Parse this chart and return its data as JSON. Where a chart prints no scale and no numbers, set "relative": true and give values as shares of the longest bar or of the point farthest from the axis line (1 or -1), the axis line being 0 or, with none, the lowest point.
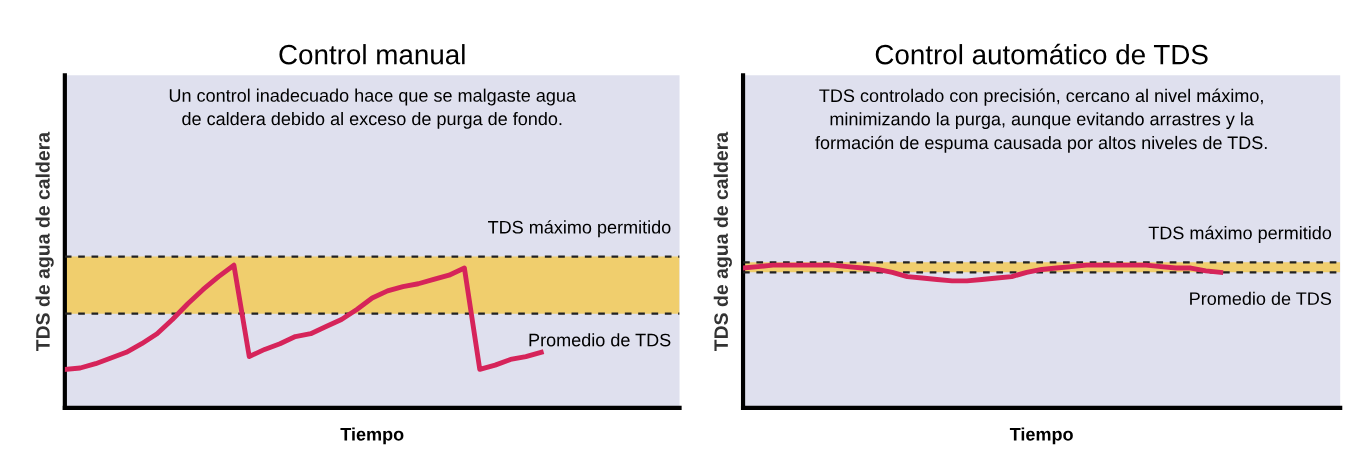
{
  "chart_data": [
    {
      "type": "line",
      "title": "Control manual",
      "xlabel": "Tiempo",
      "ylabel": "TDS de agua de caldera",
      "relative": true,
      "tick_labels": false,
      "marker": "none",
      "line_style": "solid",
      "annotations": [
        "Un control inadecuado hace que se malgaste agua\nde caldera debido al exceso de purga de fondo."
      ],
      "categories": [
        null,
        null,
        null,
        null,
        null,
        null,
        null,
        null,
        null,
        null,
        null,
        null,
        null,
        null,
        null,
        null,
        null,
        null,
        null,
        null,
        null,
        null,
        null,
        null,
        null,
        null,
        null,
        null,
        null,
        null,
        null,
        null,
        null,
        null,
        null,
        null,
        null,
        null,
        null,
        null,
        null
      ],
      "series": [
        {
          "color": "#d6245a",
          "values": [
            0.27,
            0.28,
            0.31,
            0.35,
            0.39,
            0.45,
            0.52,
            0.62,
            0.73,
            0.83,
            0.92,
            1.0,
            0.36,
            0.41,
            0.45,
            0.5,
            0.52,
            0.57,
            0.62,
            0.69,
            0.77,
            0.82,
            0.85,
            0.87,
            0.9,
            0.93,
            0.98,
            0.27,
            0.3,
            0.34,
            0.36,
            0.39,
            null,
            null,
            null,
            null,
            null,
            null,
            null,
            null,
            null
          ]
        }
      ],
      "ref_lines": [
        {
          "axis": "y",
          "value": 1.06,
          "label": "TDS máximo permitido",
          "color": "#222222",
          "line_style": "dashed"
        },
        {
          "axis": "y",
          "value": 0.66,
          "label": "Promedio de TDS",
          "color": "#222222",
          "line_style": "dashed"
        }
      ],
      "bands": [
        {
          "axis": "y",
          "from": 0.66,
          "to": 1.06,
          "color": "#f5c842"
        }
      ]
    },
    {
      "type": "line",
      "title": "Control automático de TDS",
      "xlabel": "Tiempo",
      "ylabel": "TDS de agua de caldera",
      "relative": true,
      "tick_labels": false,
      "marker": "none",
      "line_style": "solid",
      "annotations": [
        "TDS controlado con precisión, cercano al nivel máximo,\nminimizando la purga, aunque evitando arrastres y la\nformación de espuma causada por altos niveles de TDS."
      ],
      "categories": [
        null,
        null,
        null,
        null,
        null,
        null,
        null,
        null,
        null,
        null,
        null,
        null,
        null,
        null,
        null,
        null,
        null,
        null,
        null,
        null,
        null,
        null,
        null,
        null,
        null,
        null,
        null,
        null,
        null,
        null,
        null,
        null,
        null,
        null,
        null,
        null,
        null,
        null,
        null,
        null,
        null
      ],
      "series": [
        {
          "color": "#d6245a",
          "values": [
            0.98,
            0.99,
            1.0,
            1.0,
            1.0,
            1.0,
            1.0,
            0.99,
            0.98,
            0.97,
            0.95,
            0.92,
            0.91,
            0.9,
            0.89,
            0.89,
            0.9,
            0.91,
            0.92,
            0.95,
            0.97,
            0.98,
            0.99,
            1.0,
            1.0,
            1.0,
            1.0,
            1.0,
            0.99,
            0.98,
            0.98,
            0.96,
            0.95,
            null,
            null,
            null,
            null,
            null,
            null,
            null,
            null
          ]
        }
      ],
      "ref_lines": [
        {
          "axis": "y",
          "value": 1.02,
          "label": "TDS máximo permitido",
          "color": "#222222",
          "line_style": "dashed"
        },
        {
          "axis": "y",
          "value": 0.95,
          "label": "Promedio de TDS",
          "color": "#222222",
          "line_style": "dashed"
        }
      ],
      "bands": [
        {
          "axis": "y",
          "from": 0.95,
          "to": 1.02,
          "color": "#f5c842"
        }
      ]
    }
  ]
}
